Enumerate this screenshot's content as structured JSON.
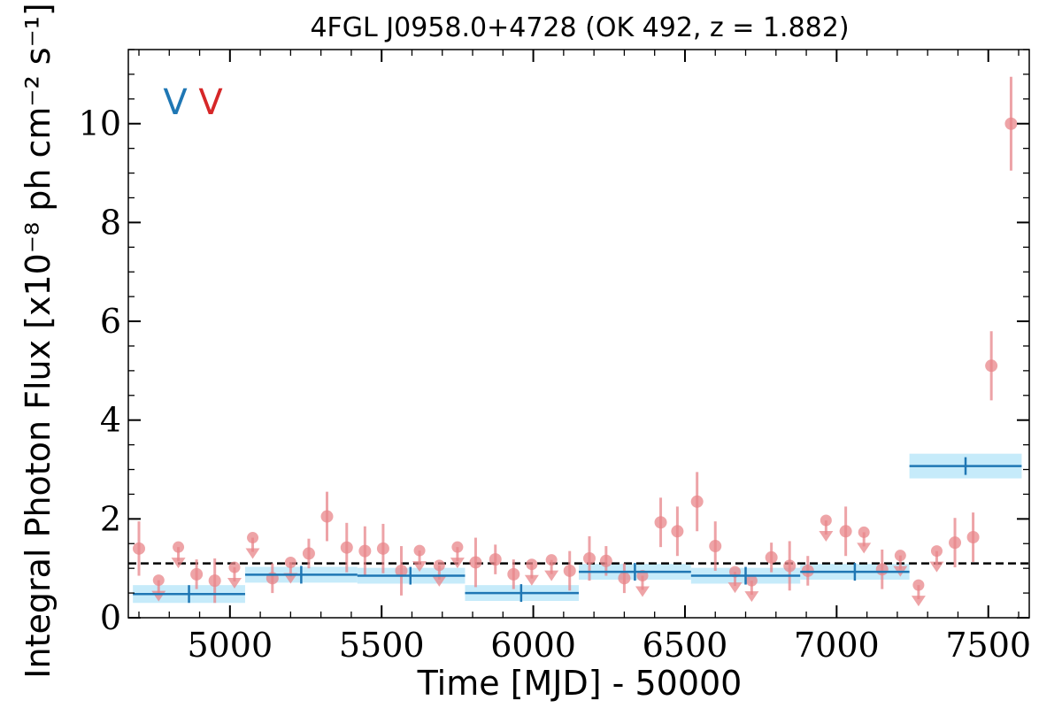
{
  "chart_data": {
    "type": "scatter",
    "title": "4FGL J0958.0+4728 (OK 492, z = 1.882)",
    "xlabel": "Time [MJD] - 50000",
    "ylabel": "Integral Photon Flux [x10⁻⁸ ph cm⁻² s⁻¹]",
    "xlim": [
      4665,
      7635
    ],
    "ylim": [
      0,
      11.5
    ],
    "x_ticks": [
      5000,
      5500,
      6000,
      6500,
      7000,
      7500
    ],
    "y_ticks": [
      0,
      2,
      4,
      6,
      8,
      10
    ],
    "grid": false,
    "legend": "none",
    "corner_markers": [
      {
        "text": "V",
        "color": "#1f77b4"
      },
      {
        "text": "V",
        "color": "#d62728"
      }
    ],
    "colors": {
      "points": "#e8858a",
      "bins": "#1f77b4",
      "bin_band": "#c6ebfa",
      "mean_line": "#000000"
    },
    "mean_flux": 1.1,
    "detections": [
      {
        "x": 4700,
        "y": 1.4,
        "err": 0.55
      },
      {
        "x": 4890,
        "y": 0.88,
        "err": 0.3
      },
      {
        "x": 4950,
        "y": 0.75,
        "err": 0.45
      },
      {
        "x": 5140,
        "y": 0.8,
        "err": 0.3
      },
      {
        "x": 5260,
        "y": 1.3,
        "err": 0.3
      },
      {
        "x": 5320,
        "y": 2.05,
        "err": 0.5
      },
      {
        "x": 5385,
        "y": 1.42,
        "err": 0.5
      },
      {
        "x": 5445,
        "y": 1.35,
        "err": 0.5
      },
      {
        "x": 5505,
        "y": 1.4,
        "err": 0.5
      },
      {
        "x": 5565,
        "y": 0.95,
        "err": 0.5
      },
      {
        "x": 5810,
        "y": 1.12,
        "err": 0.5
      },
      {
        "x": 5875,
        "y": 1.18,
        "err": 0.3
      },
      {
        "x": 5935,
        "y": 0.88,
        "err": 0.3
      },
      {
        "x": 6120,
        "y": 0.95,
        "err": 0.4
      },
      {
        "x": 6185,
        "y": 1.2,
        "err": 0.45
      },
      {
        "x": 6240,
        "y": 1.15,
        "err": 0.3
      },
      {
        "x": 6300,
        "y": 0.8,
        "err": 0.3
      },
      {
        "x": 6420,
        "y": 1.93,
        "err": 0.5
      },
      {
        "x": 6475,
        "y": 1.75,
        "err": 0.5
      },
      {
        "x": 6540,
        "y": 2.35,
        "err": 0.6
      },
      {
        "x": 6600,
        "y": 1.45,
        "err": 0.5
      },
      {
        "x": 6785,
        "y": 1.22,
        "err": 0.3
      },
      {
        "x": 6845,
        "y": 1.05,
        "err": 0.5
      },
      {
        "x": 6905,
        "y": 0.95,
        "err": 0.3
      },
      {
        "x": 7030,
        "y": 1.75,
        "err": 0.5
      },
      {
        "x": 7150,
        "y": 0.98,
        "err": 0.4
      },
      {
        "x": 7390,
        "y": 1.52,
        "err": 0.5
      },
      {
        "x": 7450,
        "y": 1.63,
        "err": 0.5
      },
      {
        "x": 7510,
        "y": 5.1,
        "err": 0.7
      },
      {
        "x": 7575,
        "y": 10.0,
        "err": 0.95
      }
    ],
    "upper_limits": [
      {
        "x": 4765,
        "y": 0.76
      },
      {
        "x": 4830,
        "y": 1.43
      },
      {
        "x": 5015,
        "y": 1.02
      },
      {
        "x": 5075,
        "y": 1.62
      },
      {
        "x": 5200,
        "y": 1.12
      },
      {
        "x": 5625,
        "y": 1.36
      },
      {
        "x": 5690,
        "y": 1.06
      },
      {
        "x": 5750,
        "y": 1.43
      },
      {
        "x": 5995,
        "y": 1.08
      },
      {
        "x": 6060,
        "y": 1.17
      },
      {
        "x": 6360,
        "y": 0.85
      },
      {
        "x": 6665,
        "y": 0.93
      },
      {
        "x": 6720,
        "y": 0.75
      },
      {
        "x": 6965,
        "y": 1.97
      },
      {
        "x": 7090,
        "y": 1.73
      },
      {
        "x": 7210,
        "y": 1.26
      },
      {
        "x": 7270,
        "y": 0.66
      },
      {
        "x": 7330,
        "y": 1.35
      }
    ],
    "bins": [
      {
        "x_start": 4680,
        "x_end": 5050,
        "x_center": 4865,
        "y": 0.48,
        "yerr": 0.18
      },
      {
        "x_start": 5050,
        "x_end": 5420,
        "x_center": 5235,
        "y": 0.87,
        "yerr": 0.16
      },
      {
        "x_start": 5420,
        "x_end": 5775,
        "x_center": 5595,
        "y": 0.85,
        "yerr": 0.16
      },
      {
        "x_start": 5775,
        "x_end": 6150,
        "x_center": 5960,
        "y": 0.5,
        "yerr": 0.16
      },
      {
        "x_start": 6150,
        "x_end": 6520,
        "x_center": 6335,
        "y": 0.93,
        "yerr": 0.16
      },
      {
        "x_start": 6520,
        "x_end": 6880,
        "x_center": 6700,
        "y": 0.85,
        "yerr": 0.16
      },
      {
        "x_start": 6880,
        "x_end": 7240,
        "x_center": 7060,
        "y": 0.93,
        "yerr": 0.16
      },
      {
        "x_start": 7240,
        "x_end": 7610,
        "x_center": 7425,
        "y": 3.07,
        "yerr": 0.25
      }
    ]
  }
}
